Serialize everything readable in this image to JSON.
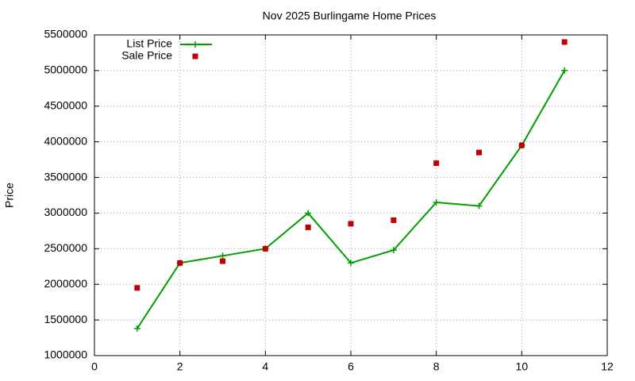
{
  "chart_data": {
    "type": "line",
    "title": "Nov 2025 Burlingame Home Prices",
    "y_label": "Price",
    "x": [
      1,
      2,
      3,
      4,
      5,
      6,
      7,
      8,
      9,
      10,
      11
    ],
    "series": [
      {
        "name": "List Price",
        "color": "#009e00",
        "line": true,
        "marker": "plus",
        "values": [
          1380000,
          2300000,
          2400000,
          2500000,
          3000000,
          2300000,
          2480000,
          3150000,
          3100000,
          3950000,
          5000000
        ]
      },
      {
        "name": "Sale Price",
        "color": "#c00000",
        "line": false,
        "marker": "square",
        "values": [
          1950000,
          2300000,
          2325000,
          2500000,
          2800000,
          2850000,
          2900000,
          3700000,
          3850000,
          3950000,
          5400000
        ]
      }
    ],
    "xlim": [
      0,
      12
    ],
    "xticks": [
      0,
      2,
      4,
      6,
      8,
      10,
      12
    ],
    "ylim": [
      1000000,
      5500000
    ],
    "yticks": [
      1000000,
      1500000,
      2000000,
      2500000,
      3000000,
      3500000,
      4000000,
      4500000,
      5000000,
      5500000
    ],
    "grid": true,
    "legend": "top-left"
  }
}
